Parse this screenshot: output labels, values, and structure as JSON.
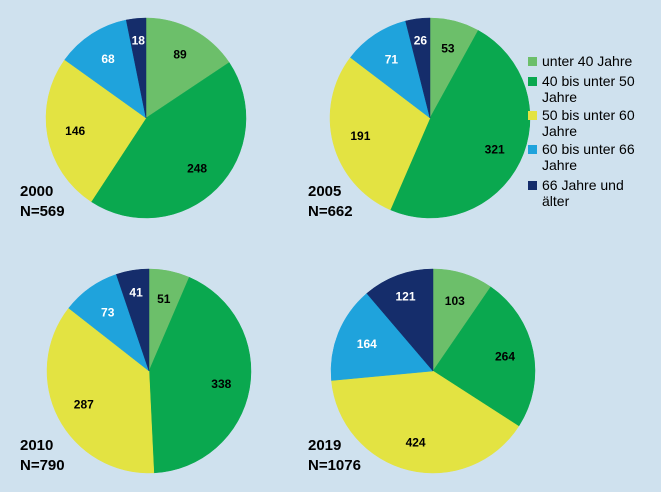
{
  "colors": {
    "background": "#cfe1ee",
    "unter40": "#6cbf6a",
    "40bis50": "#0aa84f",
    "50bis60": "#e3e342",
    "60bis66": "#1fa3dc",
    "66plus": "#152d6b"
  },
  "legend": [
    {
      "lines": [
        "unter 40 Jahre"
      ],
      "color_key": "unter40"
    },
    {
      "lines": [
        "40 bis unter 50",
        "Jahre"
      ],
      "color_key": "40bis50"
    },
    {
      "lines": [
        "50 bis unter 60",
        "Jahre"
      ],
      "color_key": "50bis60"
    },
    {
      "lines": [
        "60 bis unter 66",
        "Jahre"
      ],
      "color_key": "60bis66"
    },
    {
      "lines": [
        "66 Jahre und",
        "älter"
      ],
      "color_key": "66plus"
    }
  ],
  "chart_data": [
    {
      "type": "pie",
      "year": "2000",
      "n_label": "N=569",
      "categories": [
        "unter 40 Jahre",
        "40 bis unter 50 Jahre",
        "50 bis unter 60 Jahre",
        "60 bis unter 66 Jahre",
        "66 Jahre und älter"
      ],
      "values": [
        89,
        248,
        146,
        68,
        18
      ]
    },
    {
      "type": "pie",
      "year": "2005",
      "n_label": "N=662",
      "categories": [
        "unter 40 Jahre",
        "40 bis unter 50 Jahre",
        "50 bis unter 60 Jahre",
        "60 bis unter 66 Jahre",
        "66 Jahre und älter"
      ],
      "values": [
        53,
        321,
        191,
        71,
        26
      ]
    },
    {
      "type": "pie",
      "year": "2010",
      "n_label": "N=790",
      "categories": [
        "unter 40 Jahre",
        "40 bis unter 50 Jahre",
        "50 bis unter 60 Jahre",
        "60 bis unter 66 Jahre",
        "66 Jahre und älter"
      ],
      "values": [
        51,
        338,
        287,
        73,
        41
      ]
    },
    {
      "type": "pie",
      "year": "2019",
      "n_label": "N=1076",
      "categories": [
        "unter 40 Jahre",
        "40 bis unter 50 Jahre",
        "50 bis unter 60 Jahre",
        "60 bis unter 66 Jahre",
        "66 Jahre und älter"
      ],
      "values": [
        103,
        264,
        424,
        164,
        121
      ]
    }
  ]
}
